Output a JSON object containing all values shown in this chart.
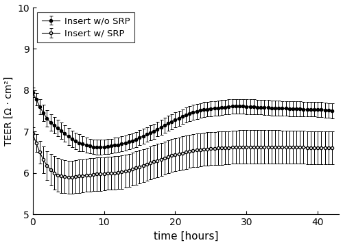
{
  "title": "",
  "xlabel": "time [hours]",
  "ylabel": "TEER [Ω · cm²]",
  "xlim": [
    0,
    43
  ],
  "ylim": [
    5,
    10
  ],
  "yticks": [
    5,
    6,
    7,
    8,
    9,
    10
  ],
  "xticks": [
    0,
    10,
    20,
    30,
    40
  ],
  "legend_labels": [
    "Insert w/o SRP",
    "Insert w/ SRP"
  ],
  "background_color": "white",
  "no_srp": {
    "time": [
      0.0,
      0.5,
      1.0,
      1.5,
      2.0,
      2.5,
      3.0,
      3.5,
      4.0,
      4.5,
      5.0,
      5.5,
      6.0,
      6.5,
      7.0,
      7.5,
      8.0,
      8.5,
      9.0,
      9.5,
      10.0,
      10.5,
      11.0,
      11.5,
      12.0,
      12.5,
      13.0,
      13.5,
      14.0,
      14.5,
      15.0,
      15.5,
      16.0,
      16.5,
      17.0,
      17.5,
      18.0,
      18.5,
      19.0,
      19.5,
      20.0,
      20.5,
      21.0,
      21.5,
      22.0,
      22.5,
      23.0,
      23.5,
      24.0,
      24.5,
      25.0,
      25.5,
      26.0,
      26.5,
      27.0,
      27.5,
      28.0,
      28.5,
      29.0,
      29.5,
      30.0,
      30.5,
      31.0,
      31.5,
      32.0,
      32.5,
      33.0,
      33.5,
      34.0,
      34.5,
      35.0,
      35.5,
      36.0,
      36.5,
      37.0,
      37.5,
      38.0,
      38.5,
      39.0,
      39.5,
      40.0,
      40.5,
      41.0,
      41.5,
      42.0
    ],
    "teer": [
      7.95,
      7.78,
      7.6,
      7.45,
      7.32,
      7.22,
      7.15,
      7.08,
      7.02,
      6.95,
      6.88,
      6.82,
      6.77,
      6.73,
      6.7,
      6.67,
      6.65,
      6.63,
      6.62,
      6.62,
      6.63,
      6.64,
      6.65,
      6.67,
      6.68,
      6.7,
      6.72,
      6.75,
      6.78,
      6.81,
      6.85,
      6.89,
      6.93,
      6.97,
      7.01,
      7.06,
      7.1,
      7.15,
      7.2,
      7.24,
      7.28,
      7.32,
      7.36,
      7.4,
      7.44,
      7.47,
      7.49,
      7.51,
      7.53,
      7.54,
      7.55,
      7.56,
      7.57,
      7.58,
      7.59,
      7.6,
      7.61,
      7.61,
      7.61,
      7.61,
      7.6,
      7.6,
      7.6,
      7.59,
      7.59,
      7.58,
      7.58,
      7.57,
      7.57,
      7.57,
      7.56,
      7.56,
      7.55,
      7.55,
      7.55,
      7.55,
      7.54,
      7.54,
      7.54,
      7.54,
      7.53,
      7.53,
      7.52,
      7.51,
      7.5
    ],
    "err": [
      0.12,
      0.15,
      0.18,
      0.2,
      0.2,
      0.2,
      0.2,
      0.2,
      0.2,
      0.2,
      0.2,
      0.2,
      0.2,
      0.2,
      0.18,
      0.18,
      0.18,
      0.18,
      0.18,
      0.18,
      0.18,
      0.18,
      0.18,
      0.18,
      0.18,
      0.18,
      0.18,
      0.18,
      0.18,
      0.18,
      0.18,
      0.18,
      0.18,
      0.18,
      0.18,
      0.18,
      0.18,
      0.18,
      0.18,
      0.18,
      0.18,
      0.18,
      0.18,
      0.18,
      0.18,
      0.18,
      0.18,
      0.18,
      0.18,
      0.18,
      0.18,
      0.18,
      0.18,
      0.18,
      0.18,
      0.18,
      0.18,
      0.18,
      0.18,
      0.18,
      0.18,
      0.18,
      0.18,
      0.18,
      0.18,
      0.18,
      0.18,
      0.18,
      0.18,
      0.18,
      0.18,
      0.18,
      0.18,
      0.18,
      0.18,
      0.18,
      0.18,
      0.18,
      0.18,
      0.18,
      0.18,
      0.18,
      0.18,
      0.18,
      0.18
    ]
  },
  "srp": {
    "time": [
      0.0,
      0.5,
      1.0,
      1.5,
      2.0,
      2.5,
      3.0,
      3.5,
      4.0,
      4.5,
      5.0,
      5.5,
      6.0,
      6.5,
      7.0,
      7.5,
      8.0,
      8.5,
      9.0,
      9.5,
      10.0,
      10.5,
      11.0,
      11.5,
      12.0,
      12.5,
      13.0,
      13.5,
      14.0,
      14.5,
      15.0,
      15.5,
      16.0,
      16.5,
      17.0,
      17.5,
      18.0,
      18.5,
      19.0,
      19.5,
      20.0,
      20.5,
      21.0,
      21.5,
      22.0,
      22.5,
      23.0,
      23.5,
      24.0,
      24.5,
      25.0,
      25.5,
      26.0,
      26.5,
      27.0,
      27.5,
      28.0,
      28.5,
      29.0,
      29.5,
      30.0,
      30.5,
      31.0,
      31.5,
      32.0,
      32.5,
      33.0,
      33.5,
      34.0,
      34.5,
      35.0,
      35.5,
      36.0,
      36.5,
      37.0,
      37.5,
      38.0,
      38.5,
      39.0,
      39.5,
      40.0,
      40.5,
      41.0,
      41.5,
      42.0
    ],
    "teer": [
      6.95,
      6.72,
      6.5,
      6.32,
      6.18,
      6.08,
      6.0,
      5.95,
      5.92,
      5.91,
      5.9,
      5.9,
      5.91,
      5.92,
      5.93,
      5.94,
      5.95,
      5.96,
      5.97,
      5.97,
      5.98,
      5.99,
      5.99,
      6.0,
      6.01,
      6.02,
      6.04,
      6.06,
      6.09,
      6.12,
      6.15,
      6.18,
      6.21,
      6.24,
      6.27,
      6.3,
      6.33,
      6.36,
      6.39,
      6.42,
      6.44,
      6.46,
      6.48,
      6.5,
      6.52,
      6.54,
      6.55,
      6.56,
      6.57,
      6.58,
      6.59,
      6.59,
      6.6,
      6.6,
      6.61,
      6.61,
      6.62,
      6.62,
      6.63,
      6.63,
      6.63,
      6.63,
      6.63,
      6.63,
      6.63,
      6.63,
      6.63,
      6.63,
      6.63,
      6.63,
      6.62,
      6.62,
      6.62,
      6.62,
      6.62,
      6.62,
      6.62,
      6.61,
      6.61,
      6.61,
      6.61,
      6.61,
      6.61,
      6.61,
      6.61
    ],
    "err": [
      0.15,
      0.22,
      0.28,
      0.32,
      0.35,
      0.38,
      0.4,
      0.4,
      0.4,
      0.4,
      0.4,
      0.4,
      0.4,
      0.4,
      0.4,
      0.4,
      0.4,
      0.4,
      0.4,
      0.4,
      0.4,
      0.4,
      0.4,
      0.4,
      0.4,
      0.4,
      0.4,
      0.4,
      0.4,
      0.4,
      0.4,
      0.4,
      0.4,
      0.4,
      0.4,
      0.4,
      0.4,
      0.4,
      0.4,
      0.4,
      0.4,
      0.4,
      0.4,
      0.4,
      0.4,
      0.4,
      0.4,
      0.4,
      0.4,
      0.4,
      0.4,
      0.4,
      0.4,
      0.4,
      0.4,
      0.4,
      0.4,
      0.4,
      0.4,
      0.4,
      0.4,
      0.4,
      0.4,
      0.4,
      0.4,
      0.4,
      0.4,
      0.4,
      0.4,
      0.4,
      0.4,
      0.4,
      0.4,
      0.4,
      0.4,
      0.4,
      0.4,
      0.4,
      0.4,
      0.4,
      0.4,
      0.4,
      0.4,
      0.4,
      0.4
    ]
  }
}
